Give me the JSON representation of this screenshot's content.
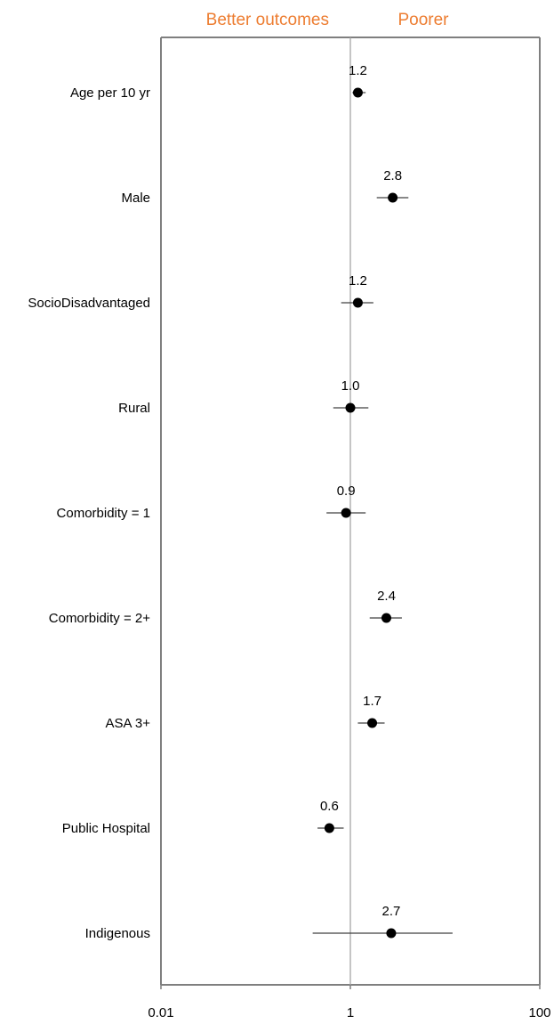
{
  "chart_data": {
    "type": "scatter",
    "title": "",
    "xlabel": "",
    "ylabel": "",
    "x_scale": "log",
    "xlim": [
      0.01,
      100
    ],
    "reference_line": 1,
    "x_ticks": [
      "0.01",
      "1",
      "100"
    ],
    "header_left": "Better outcomes",
    "header_right": "Poorer",
    "grid": false,
    "categories": [
      "Age per 10 yr",
      "Male",
      "SocioDisadvantaged",
      "Rural",
      "Comorbidity = 1",
      "Comorbidity = 2+",
      "ASA 3+",
      "Public Hospital",
      "Indigenous"
    ],
    "series": [
      {
        "values": [
          1.2,
          2.8,
          1.2,
          1.0,
          0.9,
          2.4,
          1.7,
          0.6,
          2.7
        ],
        "ci_low": [
          1.05,
          1.9,
          0.8,
          0.66,
          0.56,
          1.6,
          1.2,
          0.45,
          0.4
        ],
        "ci_high": [
          1.45,
          4.1,
          1.75,
          1.55,
          1.45,
          3.5,
          2.3,
          0.85,
          12.0
        ],
        "labels": [
          "1.2",
          "2.8",
          "1.2",
          "1.0",
          "0.9",
          "2.4",
          "1.7",
          "0.6",
          "2.7"
        ]
      }
    ]
  },
  "colors": {
    "header": "#ed7d31",
    "frame": "#7f7f7f",
    "reference": "#a6a6a6",
    "point": "#000000",
    "ci": "#404040",
    "text": "#000000"
  }
}
